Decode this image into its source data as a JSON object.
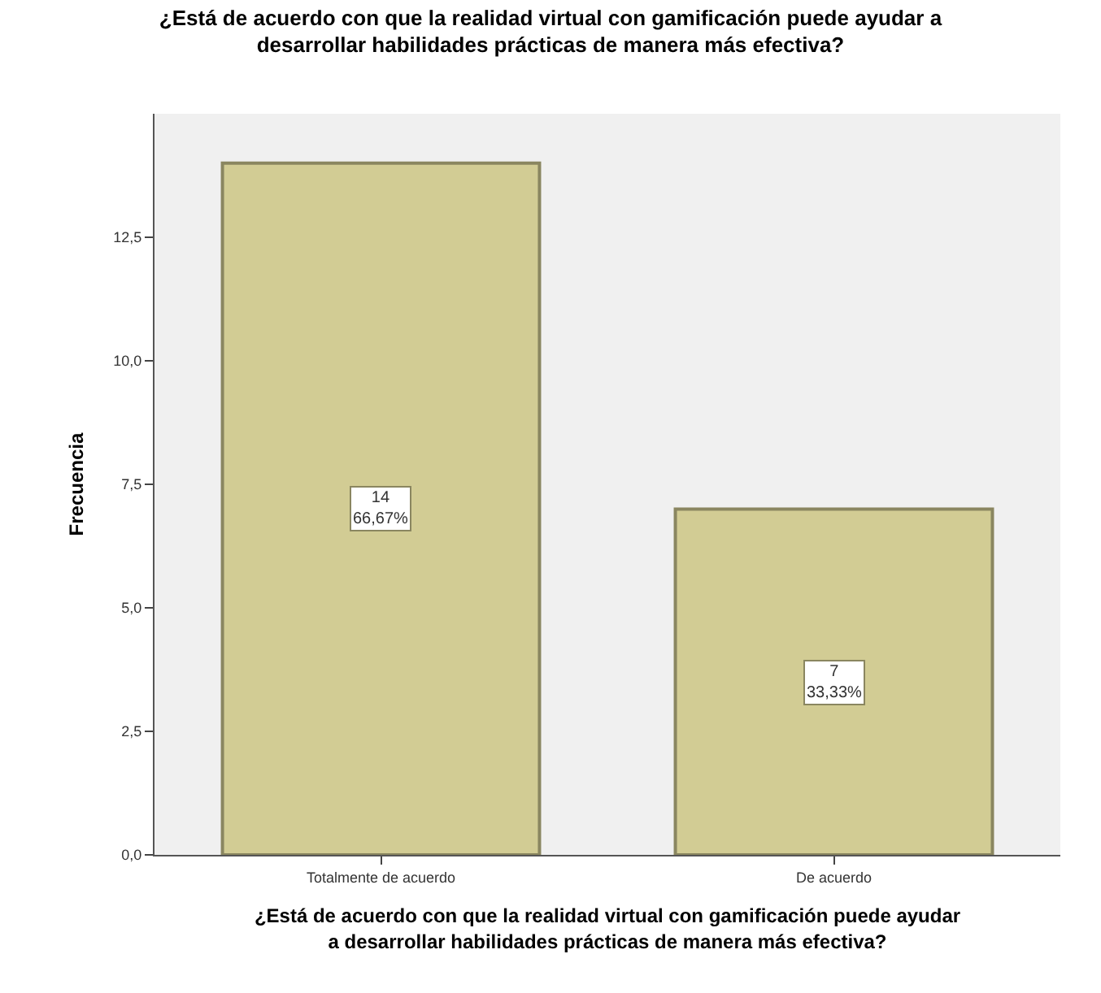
{
  "chart_data": {
    "type": "bar",
    "title": "¿Está de acuerdo con que la realidad virtual con gamificación puede ayudar a\ndesarrollar habilidades prácticas de manera más efectiva?",
    "xlabel": "¿Está de acuerdo con que la realidad virtual con gamificación puede ayudar\na desarrollar habilidades prácticas de manera más efectiva?",
    "ylabel": "Frecuencia",
    "categories": [
      "Totalmente de acuerdo",
      "De acuerdo"
    ],
    "values": [
      14,
      7
    ],
    "value_labels": [
      "14\n66,67%",
      "7\n33,33%"
    ],
    "color": "#d2cc94",
    "ylim": [
      0,
      15
    ],
    "yticks": [
      {
        "value": 0,
        "label": "0,0"
      },
      {
        "value": 2.5,
        "label": "2,5"
      },
      {
        "value": 5,
        "label": "5,0"
      },
      {
        "value": 7.5,
        "label": "7,5"
      },
      {
        "value": 10,
        "label": "10,0"
      },
      {
        "value": 12.5,
        "label": "12,5"
      }
    ],
    "grid": false
  }
}
